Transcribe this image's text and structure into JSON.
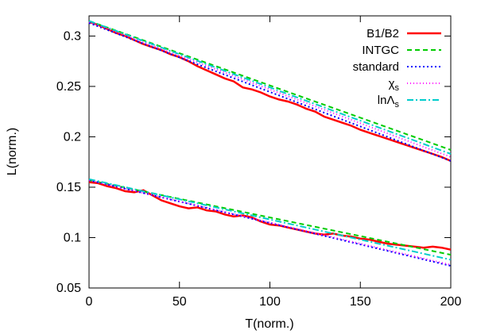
{
  "chart_data": {
    "type": "line",
    "xlabel": "T(norm.)",
    "ylabel": "L(norm.)",
    "xlim": [
      0,
      200
    ],
    "ylim": [
      0.05,
      0.32
    ],
    "xticks": [
      0,
      50,
      100,
      150,
      200
    ],
    "yticks": [
      0.05,
      0.1,
      0.15,
      0.2,
      0.25,
      0.3
    ],
    "ytick_labels": [
      "0.05",
      "0.1",
      "0.15",
      "0.2",
      "0.25",
      "0.3"
    ],
    "grid": false,
    "legend_position": "top-right",
    "series": [
      {
        "name": "B1/B2",
        "color": "#ff0000",
        "dash": "solid",
        "lower": {
          "x": [
            0,
            5,
            10,
            15,
            20,
            25,
            30,
            35,
            40,
            45,
            50,
            55,
            60,
            65,
            70,
            75,
            80,
            85,
            90,
            95,
            100,
            105,
            110,
            115,
            120,
            125,
            130,
            135,
            140,
            145,
            150,
            155,
            160,
            165,
            170,
            175,
            180,
            185,
            190,
            195,
            200
          ],
          "y": [
            0.155,
            0.154,
            0.151,
            0.149,
            0.146,
            0.145,
            0.147,
            0.142,
            0.137,
            0.134,
            0.131,
            0.129,
            0.13,
            0.127,
            0.126,
            0.123,
            0.121,
            0.122,
            0.12,
            0.116,
            0.113,
            0.112,
            0.11,
            0.108,
            0.106,
            0.104,
            0.103,
            0.104,
            0.102,
            0.101,
            0.099,
            0.098,
            0.096,
            0.094,
            0.093,
            0.092,
            0.091,
            0.09,
            0.091,
            0.09,
            0.088
          ]
        },
        "upper": {
          "x": [
            0,
            5,
            10,
            15,
            20,
            25,
            30,
            35,
            40,
            45,
            50,
            55,
            60,
            65,
            70,
            75,
            80,
            85,
            90,
            95,
            100,
            105,
            110,
            115,
            120,
            125,
            130,
            135,
            140,
            145,
            150,
            155,
            160,
            165,
            170,
            175,
            180,
            185,
            190,
            195,
            200
          ],
          "y": [
            0.314,
            0.311,
            0.307,
            0.303,
            0.3,
            0.296,
            0.292,
            0.289,
            0.286,
            0.282,
            0.279,
            0.275,
            0.27,
            0.266,
            0.262,
            0.258,
            0.255,
            0.249,
            0.247,
            0.244,
            0.24,
            0.237,
            0.235,
            0.232,
            0.228,
            0.225,
            0.22,
            0.217,
            0.214,
            0.211,
            0.207,
            0.204,
            0.201,
            0.198,
            0.195,
            0.192,
            0.189,
            0.186,
            0.183,
            0.18,
            0.176
          ]
        }
      },
      {
        "name": "INTGC",
        "color": "#00cc00",
        "dash": "6,4",
        "lower": {
          "x": [
            0,
            200
          ],
          "y": [
            0.157,
            0.083
          ]
        },
        "upper": {
          "x": [
            0,
            200
          ],
          "y": [
            0.315,
            0.187
          ]
        }
      },
      {
        "name": "standard",
        "color": "#0000ff",
        "dash": "2,3",
        "lower": {
          "x": [
            0,
            200
          ],
          "y": [
            0.157,
            0.072
          ]
        },
        "upper": {
          "x": [
            0,
            200
          ],
          "y": [
            0.313,
            0.176
          ]
        }
      },
      {
        "name": "χs",
        "label_main": "χ",
        "label_sub": "s",
        "color": "#ff00ff",
        "dash": "1,3",
        "lower": {
          "x": [
            0,
            200
          ],
          "y": [
            0.157,
            0.073
          ]
        },
        "upper": {
          "x": [
            0,
            200
          ],
          "y": [
            0.314,
            0.18
          ]
        }
      },
      {
        "name": "lnΛs",
        "label_main": "lnΛ",
        "label_sub": "s",
        "color": "#00cccc",
        "dash": "8,3,2,3",
        "lower": {
          "x": [
            0,
            200
          ],
          "y": [
            0.158,
            0.078
          ]
        },
        "upper": {
          "x": [
            0,
            200
          ],
          "y": [
            0.315,
            0.183
          ]
        }
      }
    ]
  }
}
